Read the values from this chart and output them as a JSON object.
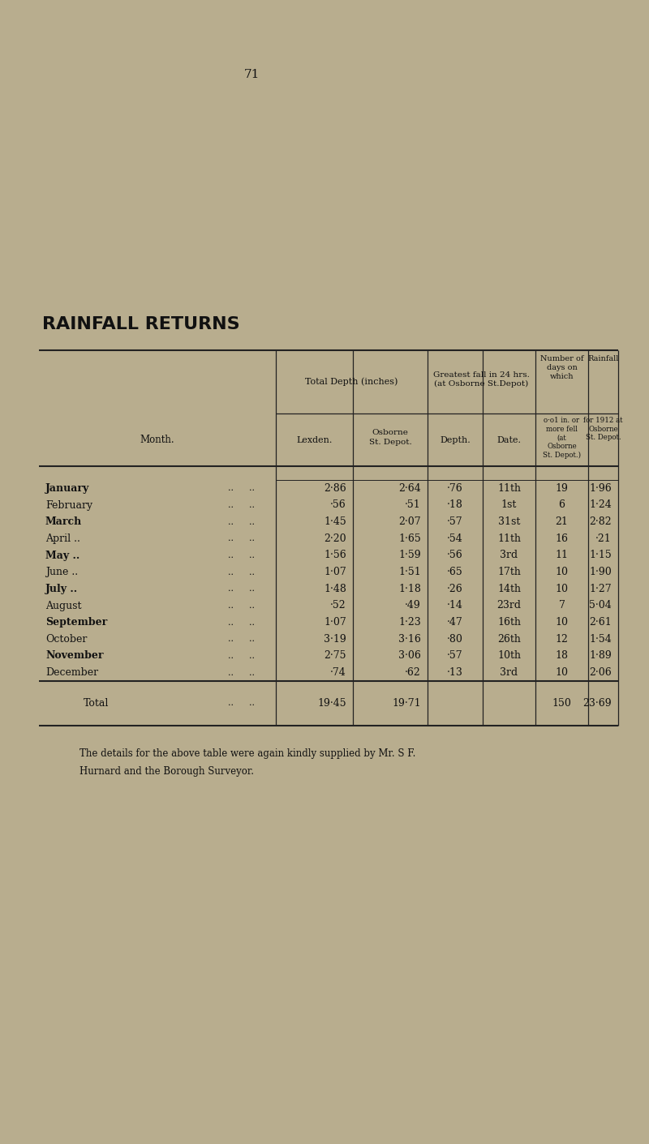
{
  "page_number": "71",
  "title": "RAINFALL RETURNS",
  "bg_color": "#b8ad8e",
  "text_color": "#111111",
  "months": [
    "January",
    "February",
    "March",
    "April ..",
    "May ..",
    "June ..",
    "July ..",
    "August",
    "September",
    "October",
    "November",
    "December"
  ],
  "months_bold": [
    true,
    false,
    true,
    false,
    true,
    false,
    true,
    false,
    true,
    false,
    true,
    false
  ],
  "lexden": [
    "2·86",
    "·56",
    "1·45",
    "2·20",
    "1·56",
    "1·07",
    "1·48",
    "·52",
    "1·07",
    "3·19",
    "2·75",
    "·74"
  ],
  "osborne_depot": [
    "2·64",
    "·51",
    "2·07",
    "1·65",
    "1·59",
    "1·51",
    "1·18",
    "·49",
    "1·23",
    "3·16",
    "3·06",
    "·62"
  ],
  "depth": [
    "·76",
    "·18",
    "·57",
    "·54",
    "·56",
    "·65",
    "·26",
    "·14",
    "·47",
    "·80",
    "·57",
    "·13"
  ],
  "date": [
    "11th",
    "1st",
    "31st",
    "11th",
    "3rd",
    "17th",
    "14th",
    "23rd",
    "16th",
    "26th",
    "10th",
    "3rd"
  ],
  "num_days": [
    "19",
    "6",
    "21",
    "16",
    "11",
    "10",
    "10",
    "7",
    "10",
    "12",
    "18",
    "10"
  ],
  "rainfall_1912": [
    "1·96",
    "1·24",
    "2·82",
    "·21",
    "1·15",
    "1·90",
    "1·27",
    "5·04",
    "2·61",
    "1·54",
    "1·89",
    "2·06"
  ],
  "total_lexden": "19·45",
  "total_osborne": "19·71",
  "total_days": "150",
  "total_rainfall": "23·69",
  "footnote_line1": "The details for the above table were again kindly supplied by Mr. S F.",
  "footnote_line2": "Hurnard and the Borough Surveyor."
}
